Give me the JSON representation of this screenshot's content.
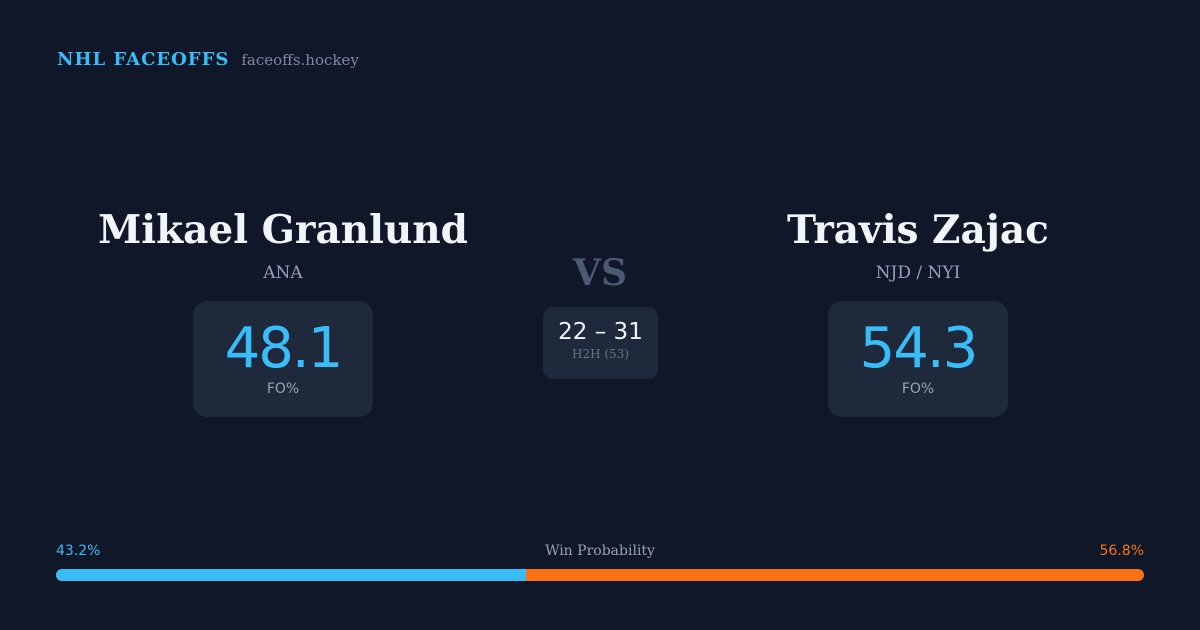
{
  "brand": {
    "title": "NHL FACEOFFS",
    "url": "faceoffs.hockey"
  },
  "player1": {
    "name": "Mikael Granlund",
    "team": "ANA",
    "fo_pct": "48.1",
    "fo_label": "FO%"
  },
  "player2": {
    "name": "Travis Zajac",
    "team": "NJD / NYI",
    "fo_pct": "54.3",
    "fo_label": "FO%"
  },
  "versus": "VS",
  "h2h": {
    "score": "22 – 31",
    "label": "H2H (53)"
  },
  "win_probability": {
    "title": "Win Probability",
    "left_label": "43.2%",
    "right_label": "56.8%",
    "left_value": 43.2,
    "right_value": 56.8,
    "colors": {
      "left": "#38bdf8",
      "right": "#f97316"
    }
  }
}
